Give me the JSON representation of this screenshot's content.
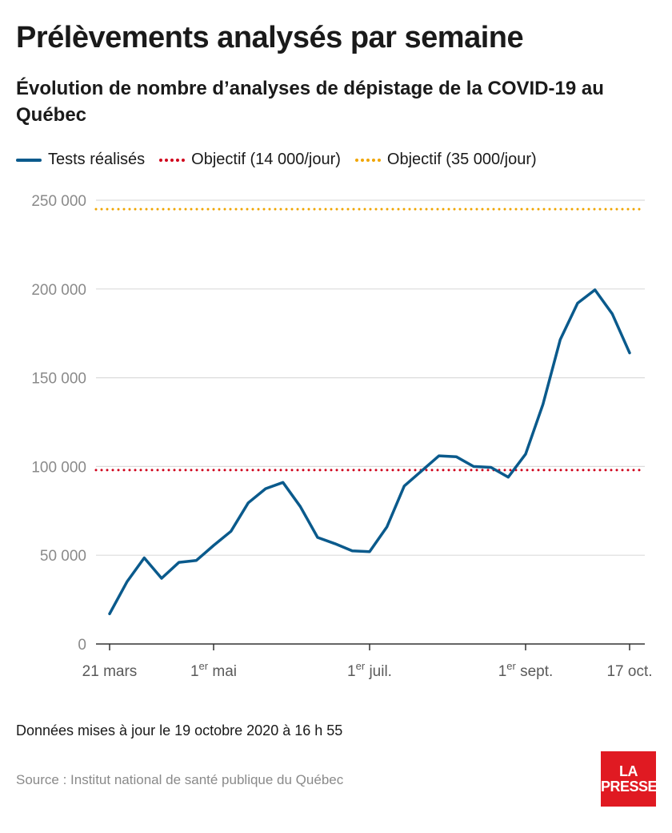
{
  "title": "Prélèvements analysés par semaine",
  "subtitle": "Évolution de nombre d’analyses de dépistage de la COVID-19 au Québec",
  "legend": [
    {
      "label": "Tests réalisés",
      "color": "#0a5a8c",
      "style": "solid"
    },
    {
      "label": "Objectif (14 000/jour)",
      "color": "#d0021b",
      "style": "dotted"
    },
    {
      "label": "Objectif (35 000/jour)",
      "color": "#f0a500",
      "style": "dotted"
    }
  ],
  "chart_data": {
    "type": "line",
    "title": "Prélèvements analysés par semaine",
    "subtitle": "Évolution de nombre d’analyses de dépistage de la COVID-19 au Québec",
    "xlabel": "",
    "ylabel": "",
    "ylim": [
      0,
      250000
    ],
    "yticks": [
      0,
      50000,
      100000,
      150000,
      200000,
      250000
    ],
    "ytick_labels": [
      "0",
      "50 000",
      "100 000",
      "150 000",
      "200 000",
      "250 000"
    ],
    "xticks": [
      {
        "week": 0,
        "label": "21 mars",
        "sup": ""
      },
      {
        "week": 6,
        "label": " mai",
        "prefix": "1",
        "sup": "er"
      },
      {
        "week": 15,
        "label": " juil.",
        "prefix": "1",
        "sup": "er"
      },
      {
        "week": 24,
        "label": " sept.",
        "prefix": "1",
        "sup": "er"
      },
      {
        "week": 30,
        "label": "17 oct.",
        "sup": ""
      }
    ],
    "grid": true,
    "legend_position": "top-left",
    "series": [
      {
        "name": "Tests réalisés",
        "color": "#0a5a8c",
        "x": [
          0,
          1,
          2,
          3,
          4,
          5,
          6,
          7,
          8,
          9,
          10,
          11,
          12,
          13,
          14,
          15,
          16,
          17,
          18,
          19,
          20,
          21,
          22,
          23,
          24,
          25,
          26,
          27,
          28,
          29,
          30
        ],
        "values": [
          17000,
          35000,
          48500,
          37000,
          46000,
          47000,
          55500,
          63500,
          79500,
          87500,
          91000,
          77500,
          60000,
          56500,
          52500,
          52000,
          66000,
          89000,
          97500,
          106000,
          105500,
          100000,
          99500,
          94000,
          107000,
          135000,
          171500,
          192000,
          199500,
          186000,
          164000
        ]
      },
      {
        "name": "Objectif (14 000/jour)",
        "color": "#d0021b",
        "constant": 98000
      },
      {
        "name": "Objectif (35 000/jour)",
        "color": "#f0a500",
        "constant": 245000
      }
    ]
  },
  "footer": {
    "updated": "Données mises à jour le 19 octobre 2020 à 16 h 55",
    "source": "Source : Institut national de santé publique du Québec"
  },
  "logo": {
    "line1": "LA",
    "line2": "PRESSE"
  }
}
